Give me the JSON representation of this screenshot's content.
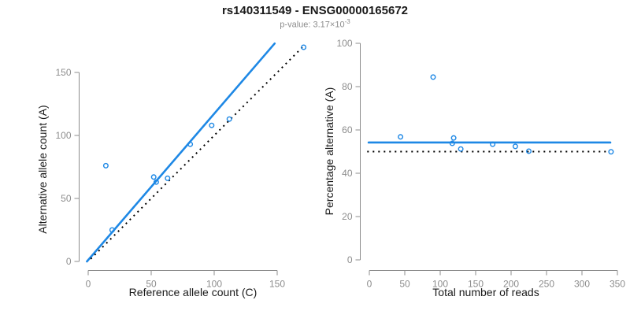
{
  "title": "rs140311549 - ENSG00000165672",
  "subtitle": {
    "prefix": "p-value: 3.17×10",
    "exponent": "-3"
  },
  "colors": {
    "accent_blue": "#1e88e5",
    "axis_gray": "#8c8c8c",
    "text_black": "#1a1a1a",
    "dotted_black": "#000000",
    "subtitle_gray": "#8c8c8c"
  },
  "chart_data": [
    {
      "type": "scatter",
      "panel": "allele-counts",
      "xlabel": "Reference allele count (C)",
      "ylabel": "Alternative allele count (A)",
      "xticks": [
        0,
        50,
        100,
        150
      ],
      "yticks": [
        0,
        50,
        100,
        150
      ],
      "xlim": [
        0,
        172
      ],
      "ylim": [
        0,
        174
      ],
      "grid": false,
      "points": [
        [
          14,
          76
        ],
        [
          19,
          25
        ],
        [
          52,
          67
        ],
        [
          54,
          63
        ],
        [
          63,
          66
        ],
        [
          81,
          93
        ],
        [
          98,
          108
        ],
        [
          112,
          113
        ],
        [
          171,
          170
        ]
      ],
      "lines": [
        {
          "name": "regression-line",
          "style": "solid",
          "x1": -1,
          "y1": 0,
          "x2": 148,
          "y2": 173
        },
        {
          "name": "identity-line",
          "style": "dotted",
          "x1": 2,
          "y1": 2,
          "x2": 170,
          "y2": 170
        }
      ]
    },
    {
      "type": "scatter",
      "panel": "percentage-vs-reads",
      "xlabel": "Total number of reads",
      "ylabel": "Percentage alternative (A)",
      "xticks": [
        0,
        50,
        100,
        150,
        200,
        250,
        300,
        350
      ],
      "yticks": [
        0,
        20,
        40,
        60,
        80,
        100
      ],
      "xlim": [
        0,
        350
      ],
      "ylim": [
        0,
        100
      ],
      "grid": false,
      "points": [
        [
          90,
          84.4
        ],
        [
          44,
          56.8
        ],
        [
          119,
          56.3
        ],
        [
          117,
          53.8
        ],
        [
          129,
          51.2
        ],
        [
          174,
          53.4
        ],
        [
          206,
          52.4
        ],
        [
          225,
          50.2
        ],
        [
          341,
          49.9
        ]
      ],
      "lines": [
        {
          "name": "mean-percentage-line",
          "style": "solid",
          "x1": -1,
          "y1": 54.2,
          "x2": 340,
          "y2": 54.2
        },
        {
          "name": "expected-50pct-line",
          "style": "dotted",
          "x1": -3,
          "y1": 50,
          "x2": 334,
          "y2": 50
        }
      ]
    }
  ]
}
